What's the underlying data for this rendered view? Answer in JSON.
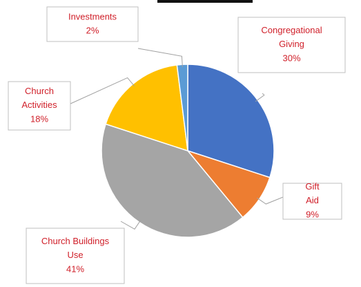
{
  "chart_data": {
    "type": "pie",
    "categories": [
      "Congregational Giving",
      "Gift Aid",
      "Church Buildings Use",
      "Church Activities",
      "Investments"
    ],
    "values": [
      30,
      9,
      41,
      18,
      2
    ],
    "value_labels": [
      "30%",
      "9%",
      "41%",
      "18%",
      "2%"
    ],
    "colors": [
      "#4472c4",
      "#ed7d31",
      "#a5a5a5",
      "#ffc000",
      "#5b9bd5"
    ]
  }
}
